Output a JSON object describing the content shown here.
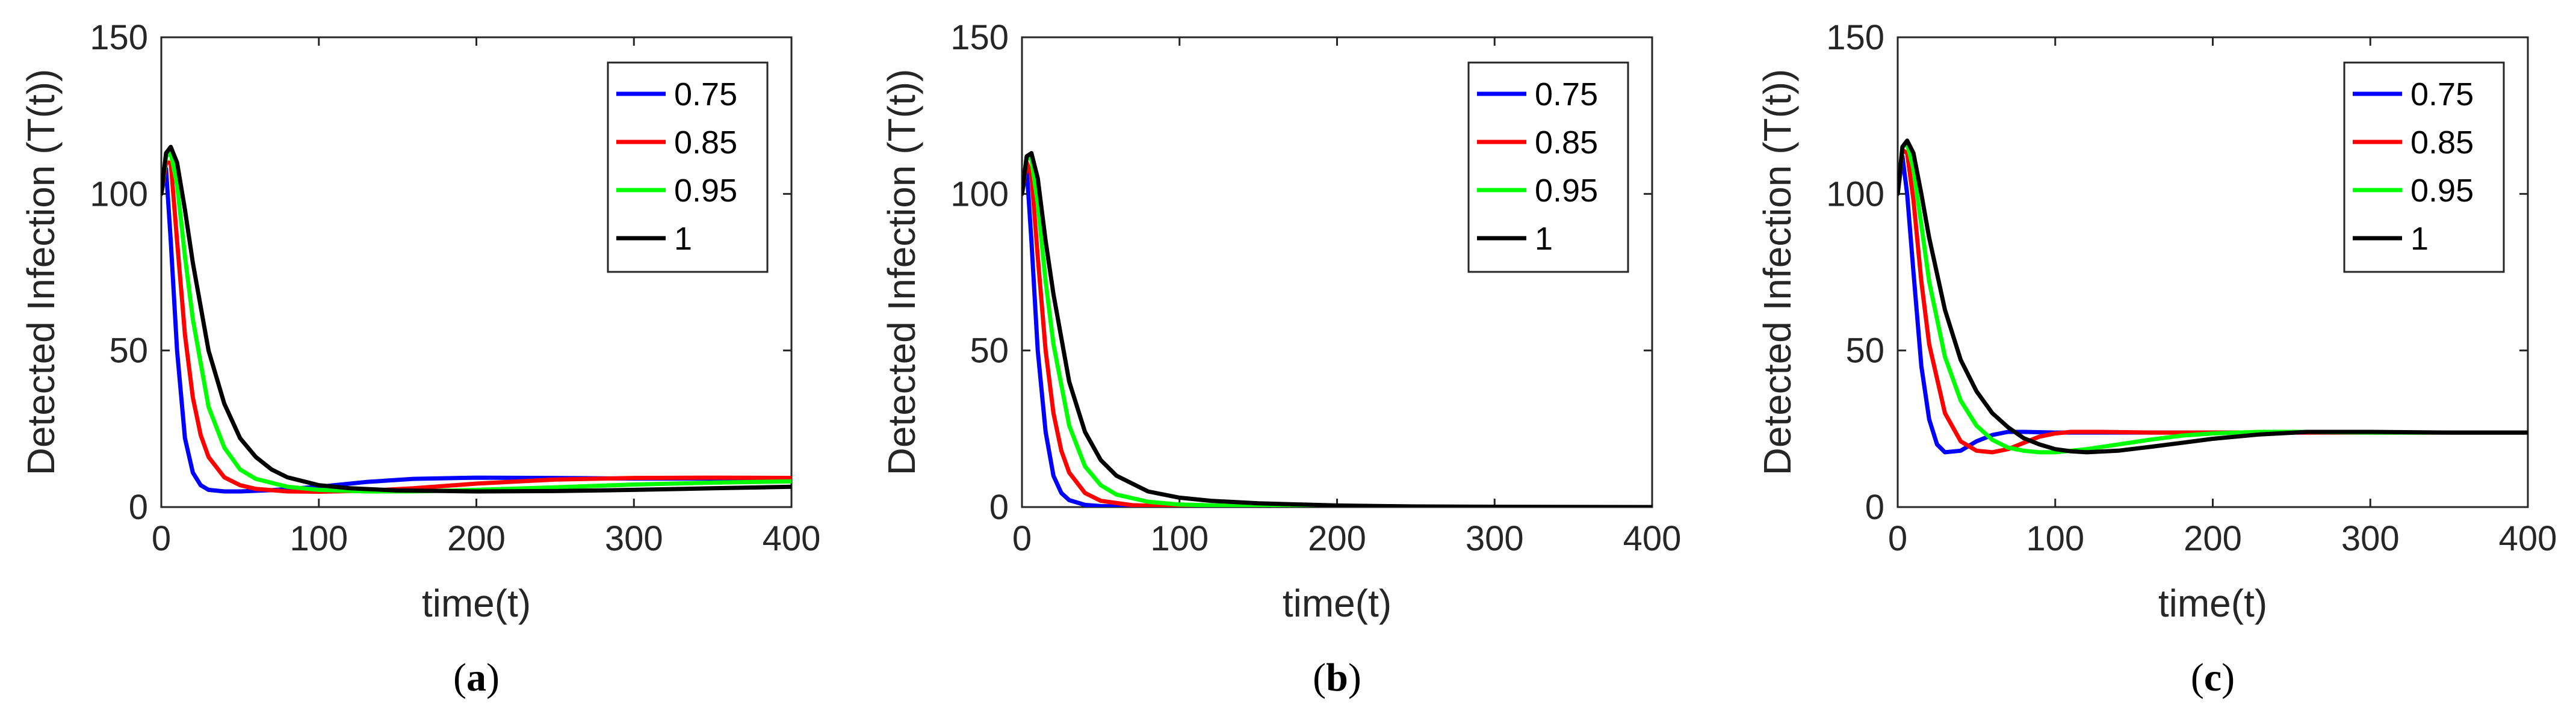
{
  "colors": {
    "blue": "#0000ff",
    "red": "#ff0000",
    "green": "#00ff00",
    "black": "#000000"
  },
  "chart_data": [
    {
      "type": "line",
      "caption": "a",
      "xlabel": "time(t)",
      "ylabel": "Detected Infection (T(t))",
      "xlim": [
        0,
        400
      ],
      "ylim": [
        0,
        150
      ],
      "xticks": [
        "0",
        "100",
        "200",
        "300",
        "400"
      ],
      "yticks": [
        "0",
        "50",
        "100",
        "150"
      ],
      "legend_position": "top-right",
      "series": [
        {
          "name": "0.75",
          "color": "#0000ff",
          "x": [
            0,
            3,
            6,
            10,
            15,
            20,
            25,
            30,
            40,
            50,
            70,
            100,
            130,
            160,
            200,
            250,
            300,
            350,
            400
          ],
          "y": [
            100,
            108,
            85,
            50,
            22,
            11,
            7,
            5.5,
            5.0,
            5.0,
            5.4,
            6.5,
            8.0,
            9.0,
            9.4,
            9.3,
            9.1,
            9.1,
            9.0
          ]
        },
        {
          "name": "0.85",
          "color": "#ff0000",
          "x": [
            0,
            3,
            6,
            10,
            15,
            20,
            25,
            30,
            40,
            50,
            60,
            80,
            100,
            130,
            160,
            200,
            250,
            300,
            350,
            400
          ],
          "y": [
            100,
            110,
            110,
            85,
            55,
            35,
            23,
            16,
            9.5,
            7.0,
            5.8,
            5.0,
            4.9,
            5.2,
            6.0,
            7.5,
            8.8,
            9.3,
            9.4,
            9.3
          ]
        },
        {
          "name": "0.95",
          "color": "#00ff00",
          "x": [
            0,
            3,
            6,
            10,
            15,
            20,
            30,
            40,
            50,
            60,
            80,
            100,
            130,
            160,
            200,
            250,
            300,
            350,
            400
          ],
          "y": [
            100,
            112,
            113,
            103,
            80,
            60,
            32,
            19,
            12,
            9,
            6.5,
            5.5,
            5.0,
            5.0,
            5.5,
            6.3,
            7.2,
            7.8,
            8.2
          ]
        },
        {
          "name": "1",
          "color": "#000000",
          "x": [
            0,
            3,
            6,
            10,
            15,
            20,
            30,
            40,
            50,
            60,
            70,
            80,
            100,
            120,
            150,
            200,
            250,
            300,
            350,
            400
          ],
          "y": [
            100,
            113,
            115,
            110,
            95,
            78,
            50,
            33,
            22,
            16,
            12,
            9.5,
            7.0,
            6.0,
            5.3,
            5.0,
            5.1,
            5.5,
            6.0,
            6.5
          ]
        }
      ]
    },
    {
      "type": "line",
      "caption": "b",
      "xlabel": "time(t)",
      "ylabel": "Detected Infection (T(t))",
      "xlim": [
        0,
        400
      ],
      "ylim": [
        0,
        150
      ],
      "xticks": [
        "0",
        "100",
        "200",
        "300",
        "400"
      ],
      "yticks": [
        "0",
        "50",
        "100",
        "150"
      ],
      "legend_position": "top-right",
      "series": [
        {
          "name": "0.75",
          "color": "#0000ff",
          "x": [
            0,
            3,
            6,
            10,
            15,
            20,
            25,
            30,
            40,
            50,
            70,
            100,
            150,
            200,
            300,
            400
          ],
          "y": [
            100,
            108,
            85,
            50,
            24,
            10,
            4.5,
            2.2,
            0.7,
            0.3,
            0.1,
            0.05,
            0.02,
            0.01,
            0,
            0
          ]
        },
        {
          "name": "0.85",
          "color": "#ff0000",
          "x": [
            0,
            3,
            6,
            10,
            15,
            20,
            25,
            30,
            40,
            50,
            70,
            100,
            150,
            200,
            300,
            400
          ],
          "y": [
            100,
            110,
            106,
            80,
            50,
            30,
            18,
            11,
            4.5,
            2.0,
            0.6,
            0.2,
            0.05,
            0.02,
            0,
            0
          ]
        },
        {
          "name": "0.95",
          "color": "#00ff00",
          "x": [
            0,
            3,
            6,
            10,
            15,
            20,
            30,
            40,
            50,
            60,
            80,
            100,
            150,
            200,
            300,
            400
          ],
          "y": [
            100,
            112,
            111,
            97,
            72,
            52,
            26,
            13,
            7,
            4,
            1.7,
            0.8,
            0.2,
            0.05,
            0,
            0
          ]
        },
        {
          "name": "1",
          "color": "#000000",
          "x": [
            0,
            3,
            6,
            10,
            15,
            20,
            30,
            40,
            50,
            60,
            80,
            100,
            120,
            150,
            200,
            250,
            300,
            400
          ],
          "y": [
            100,
            112,
            113,
            105,
            85,
            68,
            40,
            24,
            15,
            10,
            5,
            3,
            2,
            1.2,
            0.5,
            0.2,
            0.1,
            0
          ]
        }
      ]
    },
    {
      "type": "line",
      "caption": "c",
      "xlabel": "time(t)",
      "ylabel": "Detected Infection (T(t))",
      "xlim": [
        0,
        400
      ],
      "ylim": [
        0,
        150
      ],
      "xticks": [
        "0",
        "100",
        "200",
        "300",
        "400"
      ],
      "yticks": [
        "0",
        "50",
        "100",
        "150"
      ],
      "legend_position": "top-right",
      "series": [
        {
          "name": "0.75",
          "color": "#0000ff",
          "x": [
            0,
            3,
            6,
            10,
            15,
            20,
            25,
            30,
            40,
            50,
            60,
            70,
            80,
            100,
            130,
            200,
            300,
            400
          ],
          "y": [
            100,
            112,
            100,
            75,
            45,
            28,
            20,
            17.5,
            18,
            21,
            23,
            24,
            24,
            23.8,
            23.8,
            23.8,
            23.8,
            23.8
          ]
        },
        {
          "name": "0.85",
          "color": "#ff0000",
          "x": [
            0,
            3,
            6,
            10,
            15,
            20,
            30,
            40,
            50,
            60,
            70,
            80,
            90,
            100,
            110,
            130,
            160,
            200,
            300,
            400
          ],
          "y": [
            100,
            114,
            113,
            98,
            72,
            52,
            30,
            21,
            18,
            17.5,
            18.5,
            20.5,
            22.5,
            23.5,
            24,
            24,
            23.8,
            23.8,
            23.8,
            23.8
          ]
        },
        {
          "name": "0.95",
          "color": "#00ff00",
          "x": [
            0,
            3,
            6,
            10,
            15,
            20,
            30,
            40,
            50,
            60,
            70,
            80,
            90,
            100,
            120,
            140,
            160,
            180,
            200,
            230,
            260,
            300,
            400
          ],
          "y": [
            100,
            115,
            116,
            108,
            90,
            72,
            48,
            34,
            26,
            21.5,
            19,
            18,
            17.5,
            17.5,
            18.5,
            20,
            21.5,
            22.8,
            23.5,
            24,
            24,
            23.8,
            23.8
          ]
        },
        {
          "name": "1",
          "color": "#000000",
          "x": [
            0,
            3,
            6,
            10,
            15,
            20,
            30,
            40,
            50,
            60,
            70,
            80,
            90,
            100,
            110,
            120,
            140,
            160,
            180,
            200,
            230,
            260,
            300,
            350,
            400
          ],
          "y": [
            100,
            115,
            117,
            113,
            100,
            86,
            63,
            47,
            37,
            30,
            25.5,
            22,
            20,
            18.5,
            17.8,
            17.5,
            18,
            19.2,
            20.5,
            21.8,
            23.2,
            24,
            24,
            23.8,
            23.8
          ]
        }
      ]
    }
  ]
}
